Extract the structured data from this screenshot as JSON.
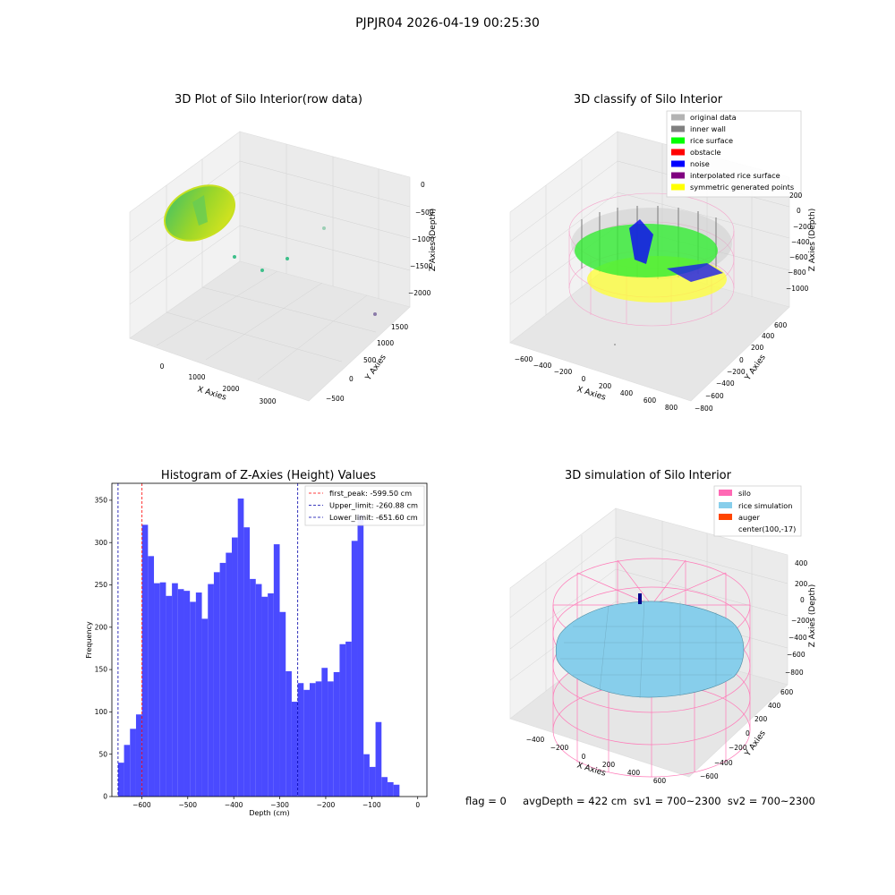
{
  "suptitle": "PJPJR04 2026-04-19 00:25:30",
  "footer": "flag = 0     avgDepth = 422 cm  sv1 = 700~2300  sv2 = 700~2300",
  "panels": {
    "raw": {
      "title": "3D Plot of Silo Interior(row data)",
      "xlabel": "X Axies",
      "ylabel": "Y Axies",
      "zlabel": "Z Axies (Depth)",
      "xticks": [
        "0",
        "1000",
        "2000",
        "3000"
      ],
      "yticks": [
        "−500",
        "0",
        "500",
        "1000",
        "1500"
      ],
      "zticks": [
        "0",
        "−500",
        "−1000",
        "−1500",
        "−2000"
      ]
    },
    "classify": {
      "title": "3D classify of Silo Interior",
      "xlabel": "X Axies",
      "ylabel": "Y Axies",
      "zlabel": "Z Axies (Depth)",
      "xticks": [
        "−600",
        "−400",
        "−200",
        "0",
        "200",
        "400",
        "600",
        "800"
      ],
      "yticks": [
        "−800",
        "−600",
        "−400",
        "−200",
        "0",
        "200",
        "400",
        "600"
      ],
      "zticks": [
        "200",
        "0",
        "−200",
        "−400",
        "−600",
        "−800",
        "−1000"
      ],
      "legend": [
        {
          "label": "original data",
          "color": "#b3b3b3"
        },
        {
          "label": "inner wall",
          "color": "#808080"
        },
        {
          "label": "rice surface",
          "color": "#00ff00"
        },
        {
          "label": "obstacle",
          "color": "#ff0000"
        },
        {
          "label": "noise",
          "color": "#0000ff"
        },
        {
          "label": "interpolated rice surface",
          "color": "#800080"
        },
        {
          "label": "symmetric generated points",
          "color": "#ffff00"
        }
      ]
    },
    "simulation": {
      "title": "3D simulation of Silo Interior",
      "xlabel": "X Axies",
      "ylabel": "Y Axies",
      "zlabel": "Z Axies (Depth)",
      "xticks": [
        "−400",
        "−200",
        "0",
        "200",
        "400",
        "600"
      ],
      "yticks": [
        "−600",
        "−400",
        "−200",
        "0",
        "200",
        "400",
        "600"
      ],
      "zticks": [
        "400",
        "200",
        "0",
        "−200",
        "−400",
        "−600",
        "−800"
      ],
      "legend": [
        {
          "label": "silo",
          "color": "#ff69b4"
        },
        {
          "label": "rice simulation",
          "color": "#87ceeb"
        },
        {
          "label": "auger",
          "color": "#ff4500"
        },
        {
          "label": "center(100,-17)",
          "color": ""
        }
      ]
    }
  },
  "chart_data": {
    "type": "bar",
    "title": "Histogram of Z-Axies (Height) Values",
    "xlabel": "Depth (cm)",
    "ylabel": "Frequency",
    "xlim": [
      -665,
      20
    ],
    "ylim": [
      0,
      370
    ],
    "xticks": [
      -600,
      -500,
      -400,
      -300,
      -200,
      -100,
      0
    ],
    "yticks": [
      0,
      50,
      100,
      150,
      200,
      250,
      300,
      350
    ],
    "bin_start": -651.6,
    "bin_width": 13.02,
    "color": "#4a4aff",
    "values": [
      40,
      61,
      80,
      97,
      321,
      284,
      252,
      253,
      237,
      252,
      245,
      243,
      230,
      241,
      210,
      251,
      265,
      276,
      288,
      306,
      352,
      318,
      257,
      251,
      236,
      240,
      298,
      218,
      148,
      112,
      134,
      126,
      134,
      136,
      152,
      136,
      147,
      180,
      183,
      302,
      333,
      50,
      35,
      88,
      23,
      17,
      14
    ],
    "vlines": [
      {
        "label": "first_peak: -599.50 cm",
        "x": -599.5,
        "color": "#ff0000"
      },
      {
        "label": "Upper_limit: -260.88 cm",
        "x": -260.88,
        "color": "#0000aa"
      },
      {
        "label": "Lower_limit: -651.60 cm",
        "x": -651.6,
        "color": "#0000aa"
      }
    ]
  }
}
